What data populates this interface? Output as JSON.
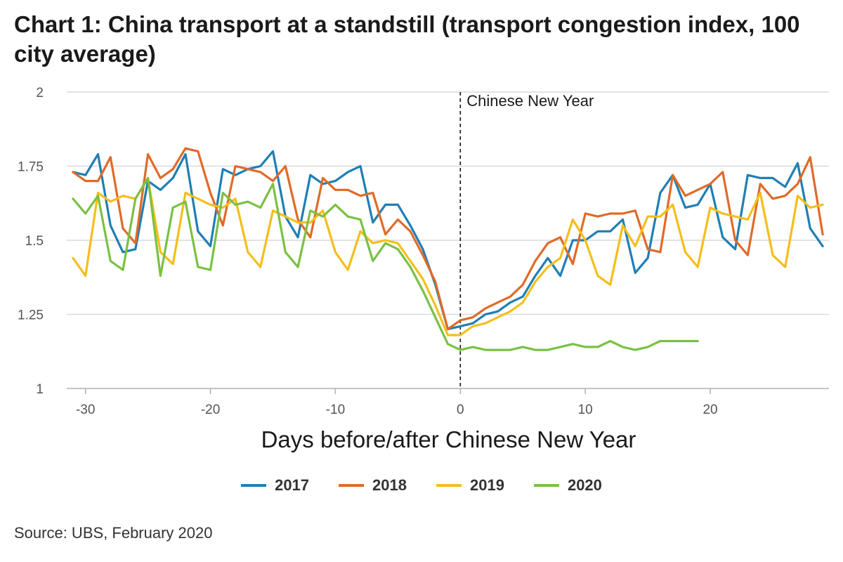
{
  "chart_data": {
    "type": "line",
    "title": "Chart 1: China transport at a standstill (transport congestion index, 100 city average)",
    "xlabel": "Days before/after Chinese New Year",
    "ylabel": "",
    "xlim": [
      -31.5,
      29.5
    ],
    "ylim": [
      1,
      2
    ],
    "y_ticks": [
      1,
      1.25,
      1.5,
      1.75,
      2
    ],
    "y_tick_labels": [
      "1",
      "1.25",
      "1.5",
      "1.75",
      "2"
    ],
    "x_ticks": [
      -30,
      -20,
      -10,
      0,
      10,
      20
    ],
    "x_tick_labels": [
      "-30",
      "-20",
      "-10",
      "0",
      "10",
      "20"
    ],
    "grid": "horizontal",
    "legend_position": "bottom",
    "annotation": {
      "x": 0,
      "label": "Chinese New Year",
      "style": "dashed vertical line"
    },
    "source": "Source: UBS, February 2020",
    "series": [
      {
        "name": "2017",
        "color": "#1f7fb4",
        "x_start": -31,
        "values": [
          1.73,
          1.72,
          1.79,
          1.55,
          1.46,
          1.47,
          1.7,
          1.67,
          1.71,
          1.79,
          1.53,
          1.48,
          1.74,
          1.72,
          1.74,
          1.75,
          1.8,
          1.58,
          1.51,
          1.72,
          1.69,
          1.7,
          1.73,
          1.75,
          1.56,
          1.62,
          1.62,
          1.55,
          1.47,
          1.35,
          1.2,
          1.21,
          1.22,
          1.25,
          1.26,
          1.29,
          1.31,
          1.38,
          1.44,
          1.38,
          1.5,
          1.5,
          1.53,
          1.53,
          1.57,
          1.39,
          1.44,
          1.66,
          1.72,
          1.61,
          1.62,
          1.69,
          1.51,
          1.47,
          1.72,
          1.71,
          1.71,
          1.68,
          1.76,
          1.54,
          1.48
        ]
      },
      {
        "name": "2018",
        "color": "#e06a28",
        "x_start": -31,
        "values": [
          1.73,
          1.7,
          1.7,
          1.78,
          1.54,
          1.49,
          1.79,
          1.71,
          1.74,
          1.81,
          1.8,
          1.66,
          1.55,
          1.75,
          1.74,
          1.73,
          1.7,
          1.75,
          1.57,
          1.51,
          1.71,
          1.67,
          1.67,
          1.65,
          1.66,
          1.52,
          1.57,
          1.53,
          1.45,
          1.36,
          1.2,
          1.23,
          1.24,
          1.27,
          1.29,
          1.31,
          1.35,
          1.43,
          1.49,
          1.51,
          1.42,
          1.59,
          1.58,
          1.59,
          1.59,
          1.6,
          1.47,
          1.46,
          1.72,
          1.65,
          1.67,
          1.69,
          1.73,
          1.5,
          1.45,
          1.69,
          1.64,
          1.65,
          1.69,
          1.78,
          1.52
        ]
      },
      {
        "name": "2019",
        "color": "#f5be1b",
        "x_start": -31,
        "values": [
          1.44,
          1.38,
          1.66,
          1.63,
          1.65,
          1.64,
          1.71,
          1.46,
          1.42,
          1.66,
          1.64,
          1.62,
          1.61,
          1.64,
          1.46,
          1.41,
          1.6,
          1.58,
          1.56,
          1.56,
          1.6,
          1.46,
          1.4,
          1.53,
          1.49,
          1.5,
          1.49,
          1.43,
          1.37,
          1.28,
          1.18,
          1.18,
          1.21,
          1.22,
          1.24,
          1.26,
          1.29,
          1.36,
          1.41,
          1.44,
          1.57,
          1.5,
          1.38,
          1.35,
          1.55,
          1.48,
          1.58,
          1.58,
          1.62,
          1.46,
          1.41,
          1.61,
          1.59,
          1.58,
          1.57,
          1.66,
          1.45,
          1.41,
          1.65,
          1.61,
          1.62
        ]
      },
      {
        "name": "2020",
        "color": "#7ac143",
        "x_start": -31,
        "values": [
          1.64,
          1.59,
          1.65,
          1.43,
          1.4,
          1.64,
          1.71,
          1.38,
          1.61,
          1.63,
          1.41,
          1.4,
          1.66,
          1.62,
          1.63,
          1.61,
          1.69,
          1.46,
          1.41,
          1.6,
          1.58,
          1.62,
          1.58,
          1.57,
          1.43,
          1.49,
          1.47,
          1.41,
          1.33,
          1.24,
          1.15,
          1.13,
          1.14,
          1.13,
          1.13,
          1.13,
          1.14,
          1.13,
          1.13,
          1.14,
          1.15,
          1.14,
          1.14,
          1.16,
          1.14,
          1.13,
          1.14,
          1.16,
          1.16,
          1.16,
          1.16
        ]
      }
    ]
  }
}
